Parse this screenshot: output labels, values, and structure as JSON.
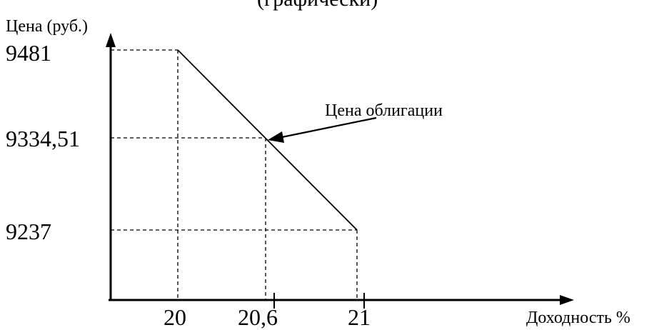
{
  "chart_data": {
    "type": "line",
    "title_fragment": "(графически)",
    "ylabel": "Цена (руб.)",
    "xlabel": "Доходность %",
    "x_ticks": [
      "20",
      "20,6",
      "21"
    ],
    "y_ticks": [
      "9481",
      "9334,51",
      "9237"
    ],
    "series": [
      {
        "name": "Цена облигации",
        "x": [
          20,
          20.6,
          21
        ],
        "y": [
          9481,
          9334.51,
          9237
        ]
      }
    ],
    "annotation": "Цена облигации",
    "grid": "dashed guides to points"
  }
}
